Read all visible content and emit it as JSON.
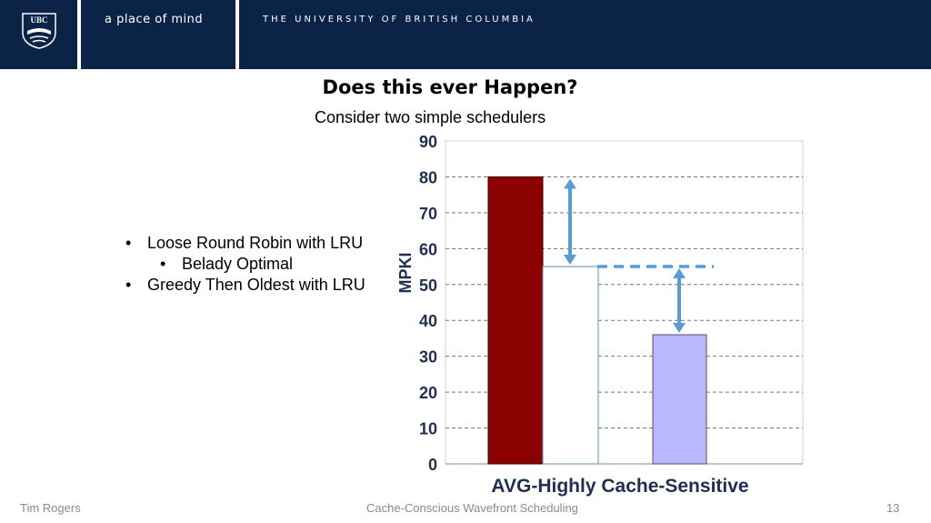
{
  "header": {
    "logo_text": "UBC",
    "tagline": "a place of mind",
    "university": "THE UNIVERSITY OF BRITISH COLUMBIA",
    "color": "#0b2346"
  },
  "slide": {
    "title": "Does this ever Happen?",
    "subtitle": "Consider two simple schedulers",
    "bullets": [
      {
        "text": "Loose Round Robin with LRU",
        "level": 0
      },
      {
        "text": "Belady Optimal",
        "level": 1
      },
      {
        "text": "Greedy Then Oldest with LRU",
        "level": 0
      }
    ]
  },
  "chart_data": {
    "type": "bar",
    "categories": [
      "AVG-Highly Cache-Sensitive"
    ],
    "series": [
      {
        "values": [
          80
        ],
        "color": "#8b0000"
      },
      {
        "values": [
          55
        ],
        "color": "#ffffff"
      },
      {
        "values": [
          36
        ],
        "color": "#b8b8ff"
      }
    ],
    "xlabel": "AVG-Highly Cache-Sensitive",
    "ylabel": "MPKI",
    "ylim": [
      0,
      90
    ],
    "yticks": [
      "0",
      "10",
      "20",
      "30",
      "40",
      "50",
      "60",
      "70",
      "80",
      "90"
    ],
    "grid": true,
    "annotations": [
      {
        "type": "double-arrow",
        "from": 80,
        "to": 55
      },
      {
        "type": "dashed-line",
        "at": 55
      },
      {
        "type": "double-arrow",
        "from": 55,
        "to": 36
      }
    ],
    "arrow_color": "#5b9bd5"
  },
  "footer": {
    "author": "Tim Rogers",
    "talk": "Cache-Conscious Wavefront Scheduling",
    "page": "13"
  }
}
